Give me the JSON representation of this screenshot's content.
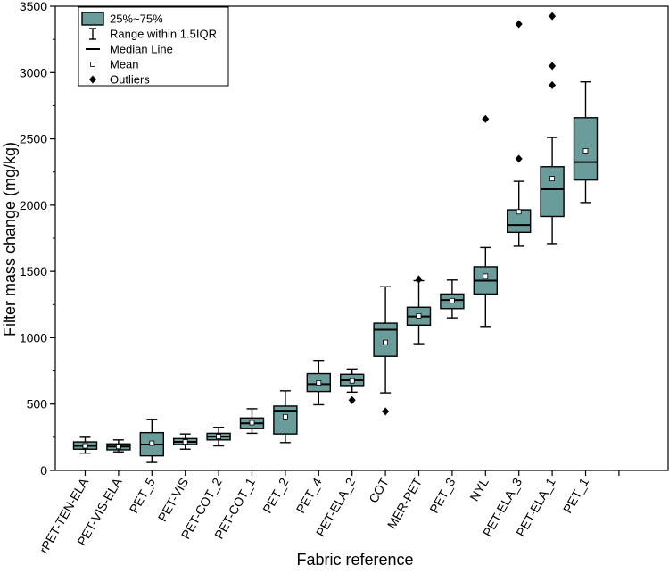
{
  "chart_data": {
    "type": "boxplot",
    "xlabel": "Fabric reference",
    "ylabel": "Filter mass change (mg/kg)",
    "ylim": [
      0,
      3500
    ],
    "yticks": [
      0,
      500,
      1000,
      1500,
      2000,
      2500,
      3000,
      3500
    ],
    "legend": {
      "position": "top-left",
      "items": [
        {
          "kind": "box",
          "label": "25%~75%"
        },
        {
          "kind": "whisker",
          "label": "Range within 1.5IQR"
        },
        {
          "kind": "median",
          "label": "Median Line"
        },
        {
          "kind": "mean",
          "label": "Mean"
        },
        {
          "kind": "outlier",
          "label": "Outliers"
        }
      ]
    },
    "categories": [
      "rPET-TEN-ELA",
      "PET-VIS-ELA",
      "PET_5",
      "PET-VIS",
      "PET-COT_2",
      "PET-COT_1",
      "PET_2",
      "PET_4",
      "PET-ELA_2",
      "COT",
      "MER-PET",
      "PET_3",
      "NYL",
      "PET-ELA_3",
      "PET-ELA_1",
      "PET_1"
    ],
    "boxes": [
      {
        "name": "rPET-TEN-ELA",
        "whisker_low": 130,
        "q1": 160,
        "median": 185,
        "q3": 215,
        "whisker_high": 250,
        "mean": 185,
        "outliers": []
      },
      {
        "name": "PET-VIS-ELA",
        "whisker_low": 140,
        "q1": 155,
        "median": 180,
        "q3": 200,
        "whisker_high": 230,
        "mean": 180,
        "outliers": []
      },
      {
        "name": "PET_5",
        "whisker_low": 60,
        "q1": 110,
        "median": 195,
        "q3": 285,
        "whisker_high": 385,
        "mean": 205,
        "outliers": []
      },
      {
        "name": "PET-VIS",
        "whisker_low": 160,
        "q1": 195,
        "median": 215,
        "q3": 240,
        "whisker_high": 275,
        "mean": 215,
        "outliers": []
      },
      {
        "name": "PET-COT_2",
        "whisker_low": 185,
        "q1": 230,
        "median": 255,
        "q3": 280,
        "whisker_high": 325,
        "mean": 255,
        "outliers": []
      },
      {
        "name": "PET-COT_1",
        "whisker_low": 280,
        "q1": 315,
        "median": 355,
        "q3": 395,
        "whisker_high": 465,
        "mean": 360,
        "outliers": []
      },
      {
        "name": "PET_2",
        "whisker_low": 210,
        "q1": 275,
        "median": 450,
        "q3": 485,
        "whisker_high": 600,
        "mean": 405,
        "outliers": []
      },
      {
        "name": "PET_4",
        "whisker_low": 495,
        "q1": 595,
        "median": 650,
        "q3": 730,
        "whisker_high": 830,
        "mean": 660,
        "outliers": []
      },
      {
        "name": "PET-ELA_2",
        "whisker_low": 590,
        "q1": 640,
        "median": 680,
        "q3": 725,
        "whisker_high": 765,
        "mean": 675,
        "outliers": [
          530
        ]
      },
      {
        "name": "COT",
        "whisker_low": 585,
        "q1": 860,
        "median": 1060,
        "q3": 1110,
        "whisker_high": 1385,
        "mean": 965,
        "outliers": [
          445
        ]
      },
      {
        "name": "MER-PET",
        "whisker_low": 955,
        "q1": 1095,
        "median": 1160,
        "q3": 1230,
        "whisker_high": 1430,
        "mean": 1165,
        "outliers": [
          1440
        ]
      },
      {
        "name": "PET_3",
        "whisker_low": 1150,
        "q1": 1220,
        "median": 1285,
        "q3": 1330,
        "whisker_high": 1435,
        "mean": 1280,
        "outliers": []
      },
      {
        "name": "NYL",
        "whisker_low": 1085,
        "q1": 1330,
        "median": 1430,
        "q3": 1535,
        "whisker_high": 1680,
        "mean": 1465,
        "outliers": [
          2650
        ]
      },
      {
        "name": "PET-ELA_3",
        "whisker_low": 1690,
        "q1": 1795,
        "median": 1850,
        "q3": 1965,
        "whisker_high": 2180,
        "mean": 1950,
        "outliers": [
          2350,
          3365
        ]
      },
      {
        "name": "PET-ELA_1",
        "whisker_low": 1710,
        "q1": 1915,
        "median": 2120,
        "q3": 2290,
        "whisker_high": 2510,
        "mean": 2200,
        "outliers": [
          2905,
          3050,
          3425
        ]
      },
      {
        "name": "PET_1",
        "whisker_low": 2020,
        "q1": 2190,
        "median": 2325,
        "q3": 2660,
        "whisker_high": 2930,
        "mean": 2410,
        "outliers": []
      }
    ],
    "colors": {
      "box_fill": "#6a9c9c",
      "stroke": "#000000"
    }
  }
}
